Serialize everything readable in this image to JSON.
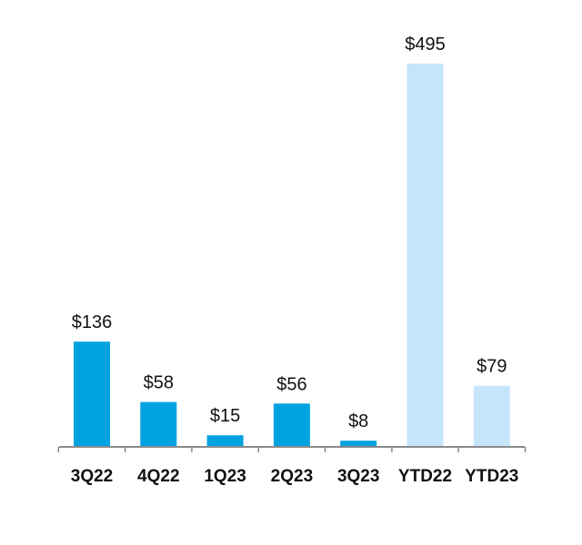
{
  "chart_data": {
    "type": "bar",
    "title": "",
    "xlabel": "",
    "ylabel": "",
    "categories": [
      "3Q22",
      "4Q22",
      "1Q23",
      "2Q23",
      "3Q23",
      "YTD22",
      "YTD23"
    ],
    "values": [
      136,
      58,
      15,
      56,
      8,
      495,
      79
    ],
    "data_labels": [
      "$136",
      "$58",
      "$15",
      "$56",
      "$8",
      "$495",
      "$79"
    ],
    "bar_colors": [
      "#00a3e0",
      "#00a3e0",
      "#00a3e0",
      "#00a3e0",
      "#00a3e0",
      "#c5e5fb",
      "#c5e5fb"
    ],
    "ylim": [
      0,
      495
    ],
    "grid": false,
    "legend": "none"
  }
}
